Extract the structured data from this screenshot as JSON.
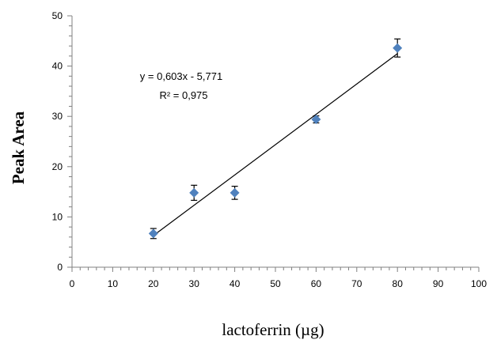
{
  "chart_data": {
    "type": "scatter",
    "xlabel": "lactoferrin (µg)",
    "ylabel": "Peak Area",
    "xlim": [
      0,
      100
    ],
    "ylim": [
      0,
      50
    ],
    "x_ticks": [
      0,
      10,
      20,
      30,
      40,
      50,
      60,
      70,
      80,
      90,
      100
    ],
    "y_ticks": [
      0,
      10,
      20,
      30,
      40,
      50
    ],
    "x_tick_labels": [
      "0",
      "10",
      "20",
      "30",
      "40",
      "50",
      "60",
      "70",
      "80",
      "90",
      "100"
    ],
    "y_tick_labels": [
      "0",
      "10",
      "20",
      "30",
      "40",
      "50"
    ],
    "grid": false,
    "legend": "none",
    "series": [
      {
        "color": "#4f81bd",
        "marker": "diamond",
        "points": [
          {
            "x": 20,
            "y": 6.7,
            "err": 1.0
          },
          {
            "x": 30,
            "y": 14.8,
            "err": 1.5
          },
          {
            "x": 40,
            "y": 14.8,
            "err": 1.3
          },
          {
            "x": 60,
            "y": 29.4,
            "err": 0.7
          },
          {
            "x": 80,
            "y": 43.6,
            "err": 1.8
          }
        ]
      }
    ],
    "trendline": {
      "type": "linear",
      "slope": 0.603,
      "intercept": -5.771,
      "x_range": [
        20,
        80
      ],
      "color": "#000000"
    },
    "annotations": {
      "equation": "y = 0,603x - 5,771",
      "r2": "R² = 0,975"
    }
  }
}
